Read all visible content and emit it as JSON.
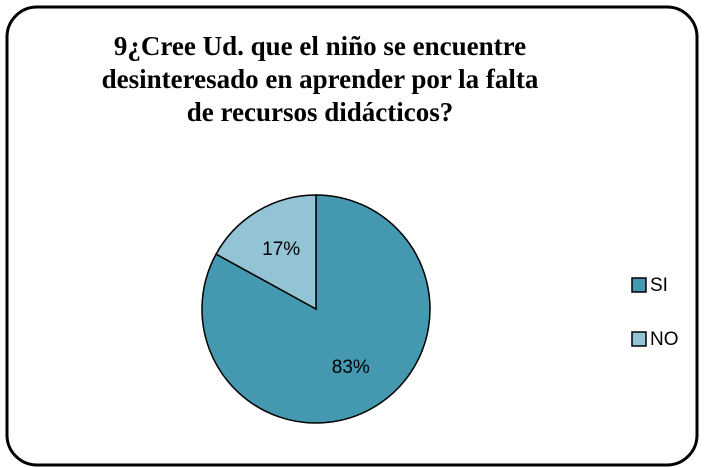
{
  "chart_data": {
    "type": "pie",
    "title": "9¿Cree Ud. que el niño se encuentre desinteresado en aprender por la falta de recursos didácticos?",
    "categories": [
      "SI",
      "NO"
    ],
    "values": [
      83,
      17
    ],
    "value_labels": [
      "83%",
      "17%"
    ],
    "colors": [
      "#4499b0",
      "#93c4d6"
    ]
  }
}
